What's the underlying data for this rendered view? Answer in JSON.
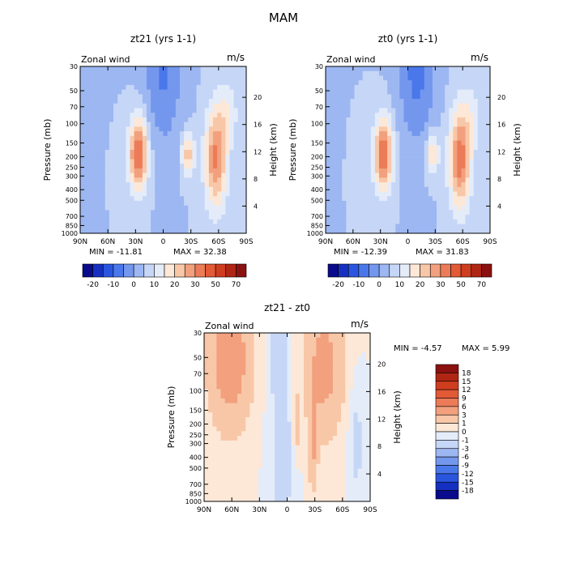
{
  "title": "MAM",
  "chart_data": [
    {
      "type": "heatmap",
      "title": "zt21 (yrs 1-1)",
      "variable_label": "Zonal wind",
      "units": "m/s",
      "xlabel": "",
      "ylabel": "Pressure (mb)",
      "ylabel_right": "Height (km)",
      "x_ticks": [
        "90N",
        "60N",
        "30N",
        "0",
        "30S",
        "60S",
        "90S"
      ],
      "y_ticks": [
        "30",
        "50",
        "70",
        "100",
        "150",
        "200",
        "250",
        "300",
        "400",
        "500",
        "700",
        "850",
        "1000"
      ],
      "y2_ticks": [
        "4",
        "8",
        "12",
        "16",
        "20"
      ],
      "xlim": [
        90,
        -90
      ],
      "ylim": [
        1000,
        30
      ],
      "y_scale": "log",
      "min_label": "MIN = -11.81",
      "max_label": "MAX = 32.38",
      "colorbar_labels": [
        "-20",
        "-10",
        "0",
        "10",
        "20",
        "30",
        "50",
        "70"
      ],
      "colorbar_colors": [
        "#0a0a8c",
        "#1530c0",
        "#2a55df",
        "#4a78ea",
        "#7497ee",
        "#9cb7f2",
        "#c6d6f6",
        "#e4ecfa",
        "#fde8d7",
        "#f8c7a8",
        "#f2a07d",
        "#ec7b58",
        "#e25a36",
        "#cf3d1f",
        "#b02614",
        "#8b1111"
      ],
      "features": [
        {
          "lat": 27,
          "p": 190,
          "value": 32,
          "wlat": 10,
          "wlogp": 0.33
        },
        {
          "lat": -57,
          "p": 210,
          "value": 26,
          "wlat": 12,
          "wlogp": 0.45
        },
        {
          "lat": -27,
          "p": 190,
          "value": 18,
          "wlat": 7,
          "wlogp": 0.2
        },
        {
          "lat": 0,
          "p": 30,
          "value": -11,
          "wlat": 20,
          "wlogp": 0.7
        },
        {
          "lat": -70,
          "p": 80,
          "value": 8,
          "wlat": 12,
          "wlogp": 0.3
        }
      ]
    },
    {
      "type": "heatmap",
      "title": "zt0 (yrs 1-1)",
      "variable_label": "Zonal wind",
      "units": "m/s",
      "xlabel": "",
      "ylabel": "Pressure (mb)",
      "ylabel_right": "Height (km)",
      "x_ticks": [
        "90N",
        "60N",
        "30N",
        "0",
        "30S",
        "60S",
        "90S"
      ],
      "y_ticks": [
        "30",
        "50",
        "70",
        "100",
        "150",
        "200",
        "250",
        "300",
        "400",
        "500",
        "700",
        "850",
        "1000"
      ],
      "y2_ticks": [
        "4",
        "8",
        "12",
        "16",
        "20"
      ],
      "xlim": [
        90,
        -90
      ],
      "ylim": [
        1000,
        30
      ],
      "y_scale": "log",
      "min_label": "MIN = -12.39",
      "max_label": "MAX = 31.83",
      "colorbar_labels": [
        "-20",
        "-10",
        "0",
        "10",
        "20",
        "30",
        "50",
        "70"
      ],
      "colorbar_colors": [
        "#0a0a8c",
        "#1530c0",
        "#2a55df",
        "#4a78ea",
        "#7497ee",
        "#9cb7f2",
        "#c6d6f6",
        "#e4ecfa",
        "#fde8d7",
        "#f8c7a8",
        "#f2a07d",
        "#ec7b58",
        "#e25a36",
        "#cf3d1f",
        "#b02614",
        "#8b1111"
      ],
      "features": [
        {
          "lat": 27,
          "p": 190,
          "value": 31,
          "wlat": 10,
          "wlogp": 0.33
        },
        {
          "lat": -57,
          "p": 210,
          "value": 28,
          "wlat": 12,
          "wlogp": 0.45
        },
        {
          "lat": -27,
          "p": 190,
          "value": 15,
          "wlat": 7,
          "wlogp": 0.2
        },
        {
          "lat": -10,
          "p": 30,
          "value": -12,
          "wlat": 20,
          "wlogp": 0.7
        },
        {
          "lat": -70,
          "p": 80,
          "value": 6,
          "wlat": 12,
          "wlogp": 0.3
        }
      ]
    },
    {
      "type": "heatmap",
      "title": "zt21 - zt0",
      "variable_label": "Zonal wind",
      "units": "m/s",
      "xlabel": "",
      "ylabel": "Pressure (mb)",
      "ylabel_right": "Height (km)",
      "x_ticks": [
        "90N",
        "60N",
        "30N",
        "0",
        "30S",
        "60S",
        "90S"
      ],
      "y_ticks": [
        "30",
        "50",
        "70",
        "100",
        "150",
        "200",
        "250",
        "300",
        "400",
        "500",
        "700",
        "850",
        "1000"
      ],
      "y2_ticks": [
        "4",
        "8",
        "12",
        "16",
        "20"
      ],
      "xlim": [
        90,
        -90
      ],
      "ylim": [
        1000,
        30
      ],
      "y_scale": "log",
      "min_label": "MIN =   -4.57",
      "max_label": "MAX =    5.99",
      "colorbar_labels": [
        "18",
        "15",
        "12",
        "9",
        "6",
        "3",
        "1",
        "0",
        "-1",
        "-3",
        "-6",
        "-9",
        "-12",
        "-15",
        "-18"
      ],
      "colorbar_colors": [
        "#8b1111",
        "#b02614",
        "#cf3d1f",
        "#e25a36",
        "#ec7b58",
        "#f2a07d",
        "#f8c7a8",
        "#fde8d7",
        "#e4ecfa",
        "#c6d6f6",
        "#9cb7f2",
        "#7497ee",
        "#4a78ea",
        "#2a55df",
        "#1530c0",
        "#0a0a8c"
      ],
      "features": [
        {
          "lat": 62,
          "p": 50,
          "value": 5,
          "wlat": 22,
          "wlogp": 0.6
        },
        {
          "lat": -40,
          "p": 60,
          "value": 4,
          "wlat": 20,
          "wlogp": 0.6
        },
        {
          "lat": -28,
          "p": 300,
          "value": 3,
          "wlat": 5,
          "wlogp": 0.4
        },
        {
          "lat": 10,
          "p": 40,
          "value": -2,
          "wlat": 10,
          "wlogp": 0.5
        },
        {
          "lat": 5,
          "p": 400,
          "value": -2,
          "wlat": 12,
          "wlogp": 0.6
        },
        {
          "lat": -75,
          "p": 300,
          "value": -1.5,
          "wlat": 8,
          "wlogp": 0.5
        },
        {
          "lat": -10,
          "p": 200,
          "value": 2,
          "wlat": 4,
          "wlogp": 0.3
        }
      ]
    }
  ]
}
